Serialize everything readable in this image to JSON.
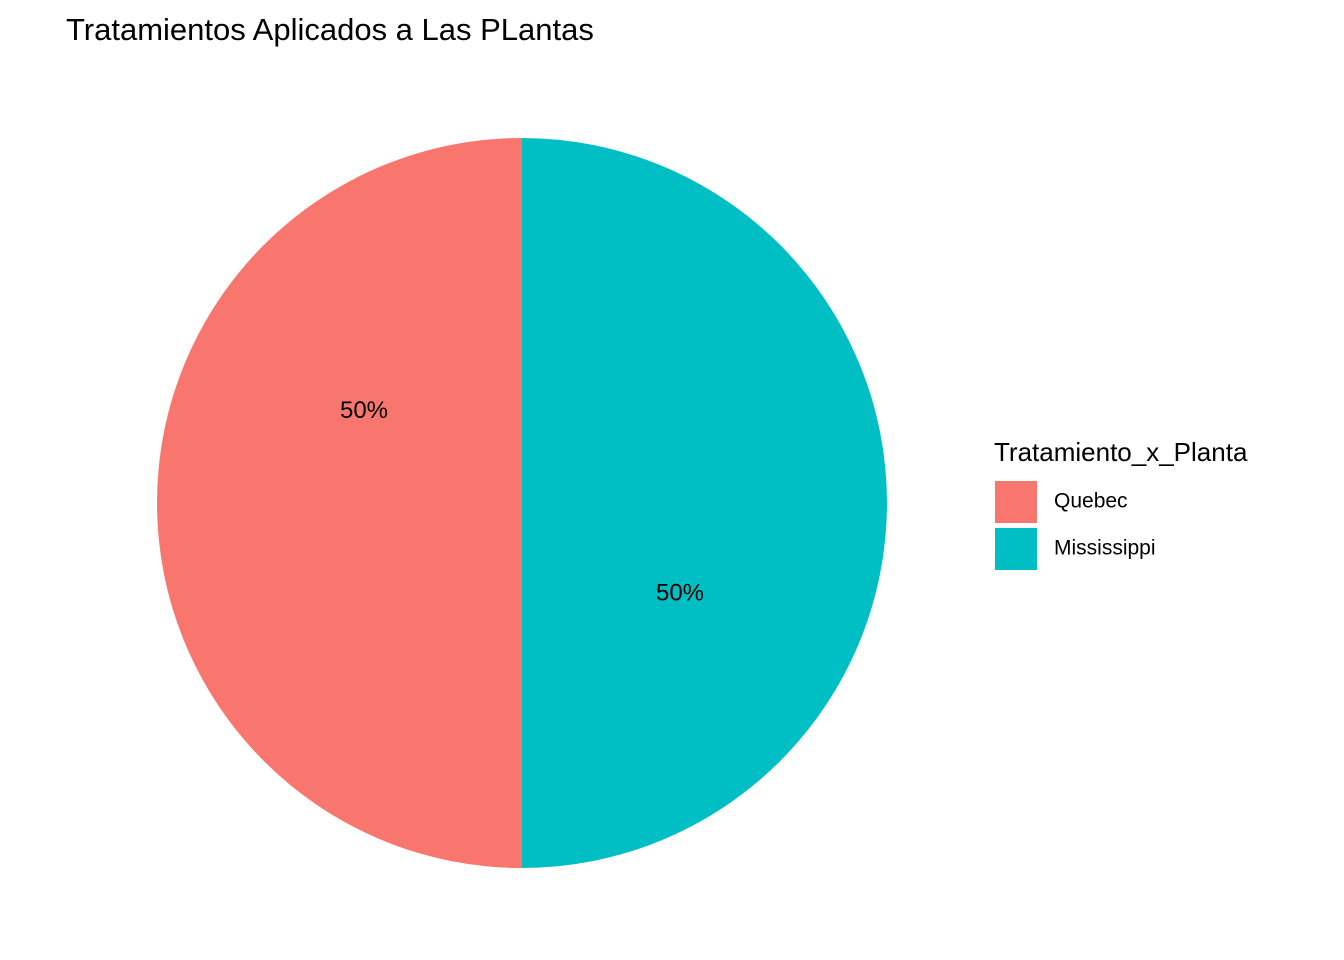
{
  "chart_data": {
    "type": "pie",
    "title": "Tratamientos Aplicados a Las PLantas",
    "legend_title": "Tratamiento_x_Planta",
    "legend_position": "right",
    "slices": [
      {
        "label": "Quebec",
        "value": 50,
        "display": "50%",
        "color": "#F8766D"
      },
      {
        "label": "Mississippi",
        "value": 50,
        "display": "50%",
        "color": "#00BFC4"
      }
    ]
  }
}
